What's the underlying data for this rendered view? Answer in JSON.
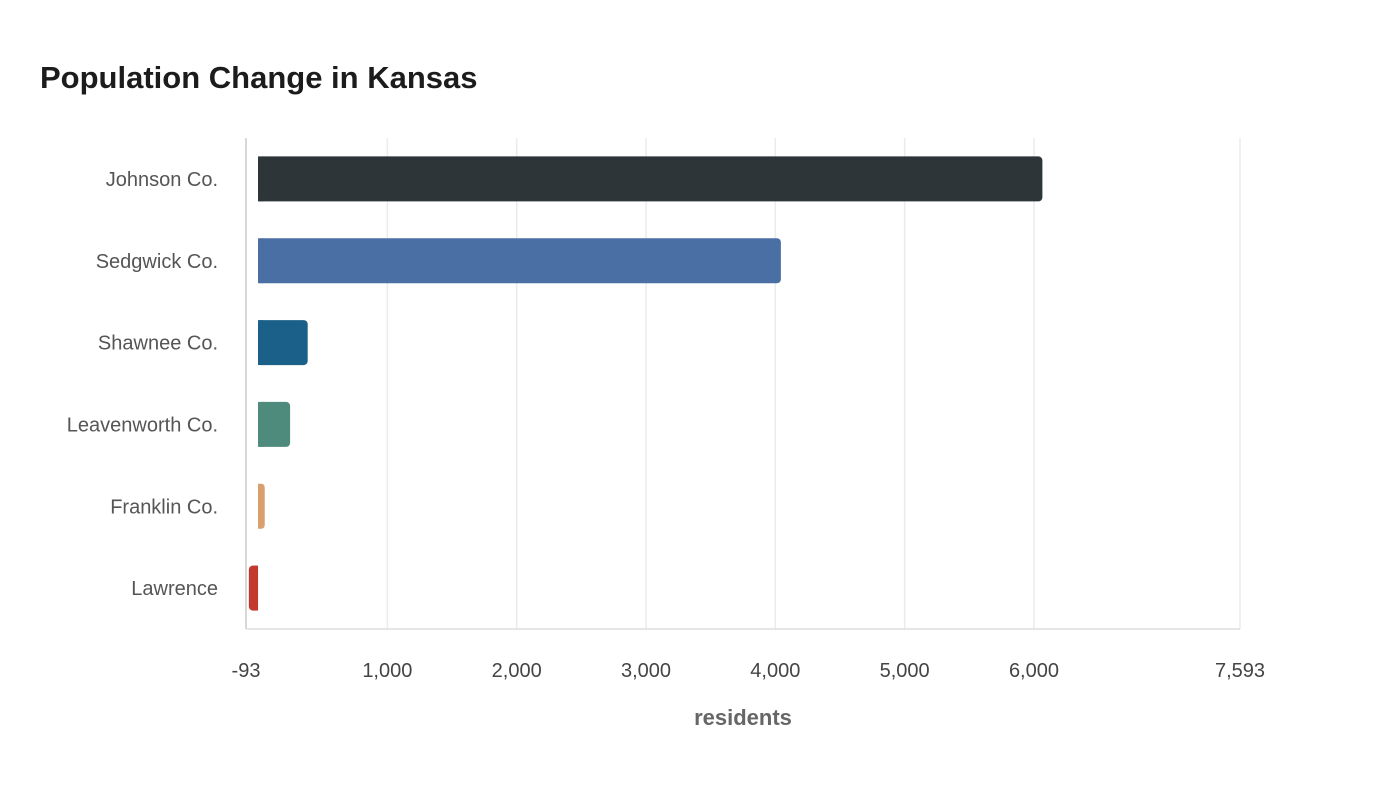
{
  "chart_data": {
    "type": "bar",
    "orientation": "horizontal",
    "title": "Population Change in Kansas",
    "xlabel": "residents",
    "ylabel": "",
    "xlim": [
      -93,
      7593
    ],
    "x_ticks": [
      -93,
      1000,
      2000,
      3000,
      4000,
      5000,
      6000,
      7593
    ],
    "x_tick_labels": [
      "-93",
      "1,000",
      "2,000",
      "3,000",
      "4,000",
      "5,000",
      "6,000",
      "7,593"
    ],
    "grid": true,
    "categories": [
      "Johnson Co.",
      "Sedgwick Co.",
      "Shawnee Co.",
      "Leavenworth Co.",
      "Franklin Co.",
      "Lawrence"
    ],
    "values": [
      6065,
      4043,
      384,
      248,
      52,
      -71
    ],
    "colors": [
      "#2e3538",
      "#4a6fa5",
      "#1a6088",
      "#4f8b7c",
      "#d9a06e",
      "#c4392f"
    ],
    "value_label_color": "#ffffff"
  }
}
